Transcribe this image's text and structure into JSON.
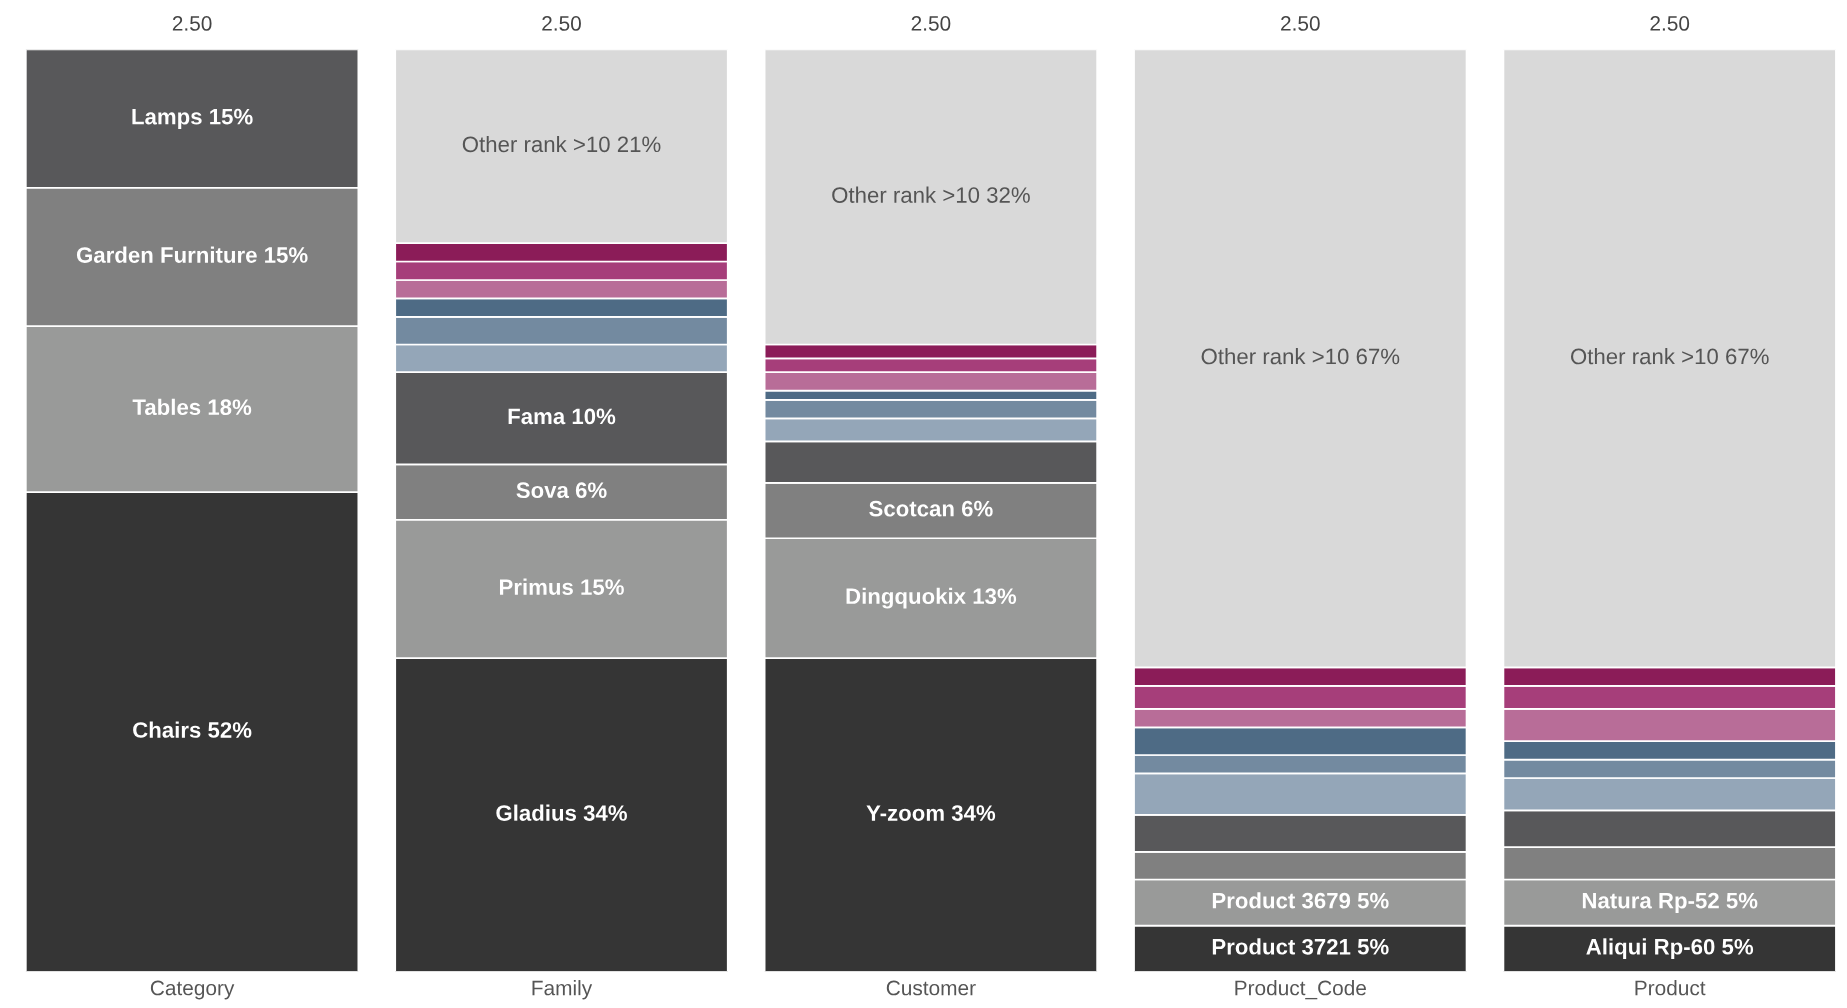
{
  "chart_data": {
    "type": "bar",
    "stacked": true,
    "tick_labels": "x",
    "categories": [
      "Category",
      "Family",
      "Customer",
      "Product_Code",
      "Product"
    ],
    "annotations": [
      "2.50",
      "2.50",
      "2.50",
      "2.50",
      "2.50"
    ],
    "series": [
      {
        "color": "#353535",
        "values": [
          52,
          34,
          34,
          5,
          5
        ],
        "value_labels": [
          "Chairs 52%",
          "Gladius 34%",
          "Y-zoom 34%",
          "Product 3721 5%",
          "Aliqui Rp-60 5%"
        ]
      },
      {
        "color": "#999a99",
        "values": [
          18,
          15,
          13,
          5,
          5
        ],
        "value_labels": [
          "Tables 18%",
          "Primus 15%",
          "Dingquokix 13%",
          "Product 3679 5%",
          "Natura Rp-52 5%"
        ]
      },
      {
        "color": "#808080",
        "values": [
          15,
          6,
          6,
          3,
          3.5
        ],
        "value_labels": [
          "Garden Furniture 15%",
          "Sova 6%",
          "Scotcan 6%",
          null,
          null
        ]
      },
      {
        "color": "#58585a",
        "values": [
          15,
          10,
          4.5,
          4,
          4
        ],
        "value_labels": [
          "Lamps 15%",
          "Fama 10%",
          null,
          null,
          null
        ]
      },
      {
        "color": "#94a6b8",
        "values": [
          null,
          3,
          2.5,
          4.5,
          3.5
        ]
      },
      {
        "color": "#738aa0",
        "values": [
          null,
          3,
          2,
          2,
          2
        ]
      },
      {
        "color": "#4e6b85",
        "values": [
          null,
          2,
          1,
          3,
          2
        ]
      },
      {
        "color": "#b86d98",
        "values": [
          null,
          2,
          2,
          2,
          3.5
        ]
      },
      {
        "color": "#a63e7a",
        "values": [
          null,
          2,
          1.5,
          2.5,
          2.5
        ]
      },
      {
        "color": "#8b1c58",
        "values": [
          null,
          2,
          1.5,
          2,
          2
        ]
      },
      {
        "color": "#d9d9d9",
        "values": [
          null,
          21,
          32,
          67,
          67
        ],
        "value_labels": [
          null,
          "Other rank >10 21%",
          "Other rank >10 32%",
          "Other rank >10 67%",
          "Other rank >10 67%"
        ]
      }
    ]
  }
}
